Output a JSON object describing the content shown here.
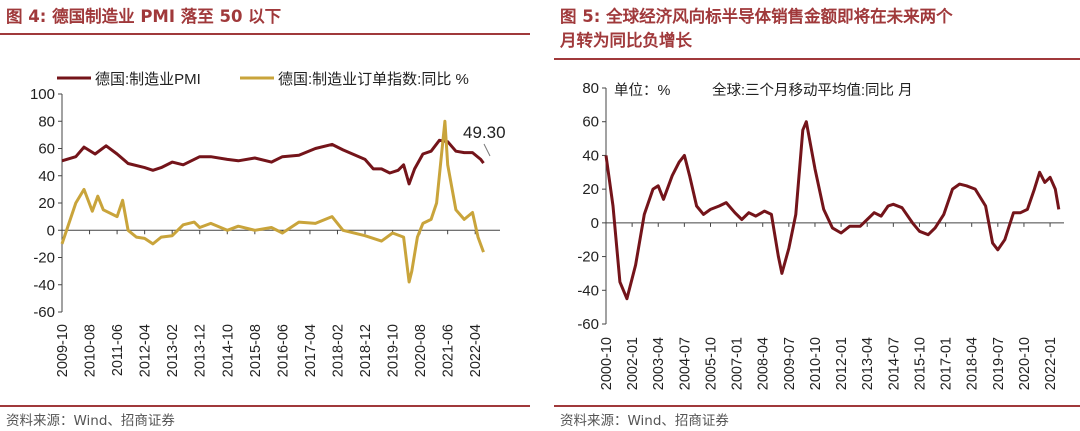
{
  "colors": {
    "title": "#a0393b",
    "maroon": "#74141a",
    "gold": "#c9a43b"
  },
  "left_panel": {
    "figure_label": "图 4:",
    "title": "德国制造业 PMI 落至 50 以下",
    "source": "资料来源：Wind、招商证券"
  },
  "right_panel": {
    "figure_label": "图 5:",
    "title_line1": "全球经济风向标半导体销售金额即将在未来两个",
    "title_line2": "月转为同比负增长",
    "source": "资料来源：Wind、招商证券"
  },
  "chart_data": [
    {
      "type": "line",
      "legend": [
        "德国:制造业PMI",
        "德国:制造业订单指数:同比 %"
      ],
      "annotation": "49.30",
      "ylim": [
        -60,
        100
      ],
      "yticks": [
        "100",
        "80",
        "60",
        "40",
        "20",
        "0",
        "-20",
        "-40",
        "-60"
      ],
      "xlabels": [
        "2009-10",
        "2010-08",
        "2011-06",
        "2012-04",
        "2013-02",
        "2013-12",
        "2014-10",
        "2015-08",
        "2016-06",
        "2017-04",
        "2018-02",
        "2018-12",
        "2019-10",
        "2020-08",
        "2021-06",
        "2022-04"
      ],
      "series": [
        {
          "name": "德国:制造业PMI",
          "points": [
            [
              "2009-10",
              51
            ],
            [
              "2010-03",
              54
            ],
            [
              "2010-06",
              61
            ],
            [
              "2010-10",
              56
            ],
            [
              "2011-02",
              62
            ],
            [
              "2011-06",
              56
            ],
            [
              "2011-10",
              49
            ],
            [
              "2012-04",
              46
            ],
            [
              "2012-07",
              44
            ],
            [
              "2012-10",
              46
            ],
            [
              "2013-02",
              50
            ],
            [
              "2013-06",
              48
            ],
            [
              "2013-12",
              54
            ],
            [
              "2014-04",
              54
            ],
            [
              "2014-10",
              52
            ],
            [
              "2015-02",
              51
            ],
            [
              "2015-08",
              53
            ],
            [
              "2016-02",
              50
            ],
            [
              "2016-06",
              54
            ],
            [
              "2016-12",
              55
            ],
            [
              "2017-06",
              60
            ],
            [
              "2017-12",
              63
            ],
            [
              "2018-04",
              59
            ],
            [
              "2018-12",
              52
            ],
            [
              "2019-03",
              45
            ],
            [
              "2019-06",
              45
            ],
            [
              "2019-09",
              42
            ],
            [
              "2019-12",
              44
            ],
            [
              "2020-02",
              48
            ],
            [
              "2020-04",
              34
            ],
            [
              "2020-06",
              45
            ],
            [
              "2020-09",
              56
            ],
            [
              "2020-12",
              58
            ],
            [
              "2021-03",
              66
            ],
            [
              "2021-06",
              65
            ],
            [
              "2021-09",
              58
            ],
            [
              "2021-12",
              57
            ],
            [
              "2022-03",
              57
            ],
            [
              "2022-06",
              52
            ],
            [
              "2022-07",
              49.3
            ]
          ]
        },
        {
          "name": "德国:制造业订单指数:同比 %",
          "points": [
            [
              "2009-10",
              -10
            ],
            [
              "2010-03",
              20
            ],
            [
              "2010-06",
              30
            ],
            [
              "2010-09",
              14
            ],
            [
              "2010-11",
              25
            ],
            [
              "2011-01",
              15
            ],
            [
              "2011-06",
              10
            ],
            [
              "2011-08",
              22
            ],
            [
              "2011-10",
              0
            ],
            [
              "2012-01",
              -5
            ],
            [
              "2012-04",
              -6
            ],
            [
              "2012-07",
              -10
            ],
            [
              "2012-10",
              -5
            ],
            [
              "2013-02",
              -4
            ],
            [
              "2013-06",
              4
            ],
            [
              "2013-10",
              6
            ],
            [
              "2013-12",
              2
            ],
            [
              "2014-04",
              5
            ],
            [
              "2014-10",
              0
            ],
            [
              "2015-02",
              3
            ],
            [
              "2015-08",
              0
            ],
            [
              "2016-02",
              2
            ],
            [
              "2016-06",
              -2
            ],
            [
              "2016-12",
              6
            ],
            [
              "2017-06",
              5
            ],
            [
              "2017-12",
              10
            ],
            [
              "2018-04",
              0
            ],
            [
              "2018-12",
              -4
            ],
            [
              "2019-06",
              -8
            ],
            [
              "2019-10",
              -2
            ],
            [
              "2020-02",
              -5
            ],
            [
              "2020-04",
              -38
            ],
            [
              "2020-05",
              -30
            ],
            [
              "2020-07",
              -5
            ],
            [
              "2020-09",
              5
            ],
            [
              "2020-12",
              8
            ],
            [
              "2021-02",
              20
            ],
            [
              "2021-05",
              80
            ],
            [
              "2021-06",
              48
            ],
            [
              "2021-09",
              15
            ],
            [
              "2021-12",
              8
            ],
            [
              "2022-03",
              13
            ],
            [
              "2022-05",
              -5
            ],
            [
              "2022-07",
              -16
            ]
          ]
        }
      ]
    },
    {
      "type": "line",
      "unit_label": "单位：%",
      "legend": [
        "全球:三个月移动平均值:同比 月"
      ],
      "ylim": [
        -60,
        80
      ],
      "yticks": [
        "80",
        "60",
        "40",
        "20",
        "0",
        "-20",
        "-40",
        "-60"
      ],
      "xlabels": [
        "2000-10",
        "2002-01",
        "2003-04",
        "2004-07",
        "2005-10",
        "2007-01",
        "2008-04",
        "2009-07",
        "2010-10",
        "2012-01",
        "2013-04",
        "2014-07",
        "2015-10",
        "2017-01",
        "2018-04",
        "2019-07",
        "2020-10",
        "2022-01"
      ],
      "series": [
        {
          "name": "全球:三个月移动平均值:同比 月",
          "points": [
            [
              "2000-10",
              40
            ],
            [
              "2001-02",
              10
            ],
            [
              "2001-06",
              -35
            ],
            [
              "2001-10",
              -45
            ],
            [
              "2002-03",
              -25
            ],
            [
              "2002-08",
              5
            ],
            [
              "2003-01",
              20
            ],
            [
              "2003-04",
              22
            ],
            [
              "2003-07",
              14
            ],
            [
              "2003-12",
              28
            ],
            [
              "2004-04",
              36
            ],
            [
              "2004-07",
              40
            ],
            [
              "2004-10",
              28
            ],
            [
              "2005-02",
              10
            ],
            [
              "2005-06",
              5
            ],
            [
              "2005-10",
              8
            ],
            [
              "2006-03",
              10
            ],
            [
              "2006-07",
              12
            ],
            [
              "2006-12",
              6
            ],
            [
              "2007-04",
              2
            ],
            [
              "2007-08",
              6
            ],
            [
              "2007-12",
              4
            ],
            [
              "2008-05",
              7
            ],
            [
              "2008-09",
              5
            ],
            [
              "2009-01",
              -20
            ],
            [
              "2009-03",
              -30
            ],
            [
              "2009-07",
              -15
            ],
            [
              "2009-11",
              5
            ],
            [
              "2010-03",
              55
            ],
            [
              "2010-05",
              60
            ],
            [
              "2010-10",
              32
            ],
            [
              "2011-03",
              8
            ],
            [
              "2011-08",
              -3
            ],
            [
              "2012-01",
              -6
            ],
            [
              "2012-06",
              -2
            ],
            [
              "2012-12",
              -2
            ],
            [
              "2013-04",
              2
            ],
            [
              "2013-08",
              6
            ],
            [
              "2013-12",
              4
            ],
            [
              "2014-04",
              10
            ],
            [
              "2014-07",
              11
            ],
            [
              "2014-12",
              9
            ],
            [
              "2015-06",
              0
            ],
            [
              "2015-10",
              -5
            ],
            [
              "2016-03",
              -7
            ],
            [
              "2016-07",
              -3
            ],
            [
              "2016-12",
              5
            ],
            [
              "2017-05",
              20
            ],
            [
              "2017-09",
              23
            ],
            [
              "2018-01",
              22
            ],
            [
              "2018-06",
              20
            ],
            [
              "2018-12",
              10
            ],
            [
              "2019-04",
              -12
            ],
            [
              "2019-07",
              -16
            ],
            [
              "2019-11",
              -10
            ],
            [
              "2020-04",
              6
            ],
            [
              "2020-08",
              6
            ],
            [
              "2020-12",
              8
            ],
            [
              "2021-04",
              20
            ],
            [
              "2021-07",
              30
            ],
            [
              "2021-10",
              24
            ],
            [
              "2022-01",
              27
            ],
            [
              "2022-04",
              20
            ],
            [
              "2022-06",
              8
            ]
          ]
        }
      ]
    }
  ]
}
